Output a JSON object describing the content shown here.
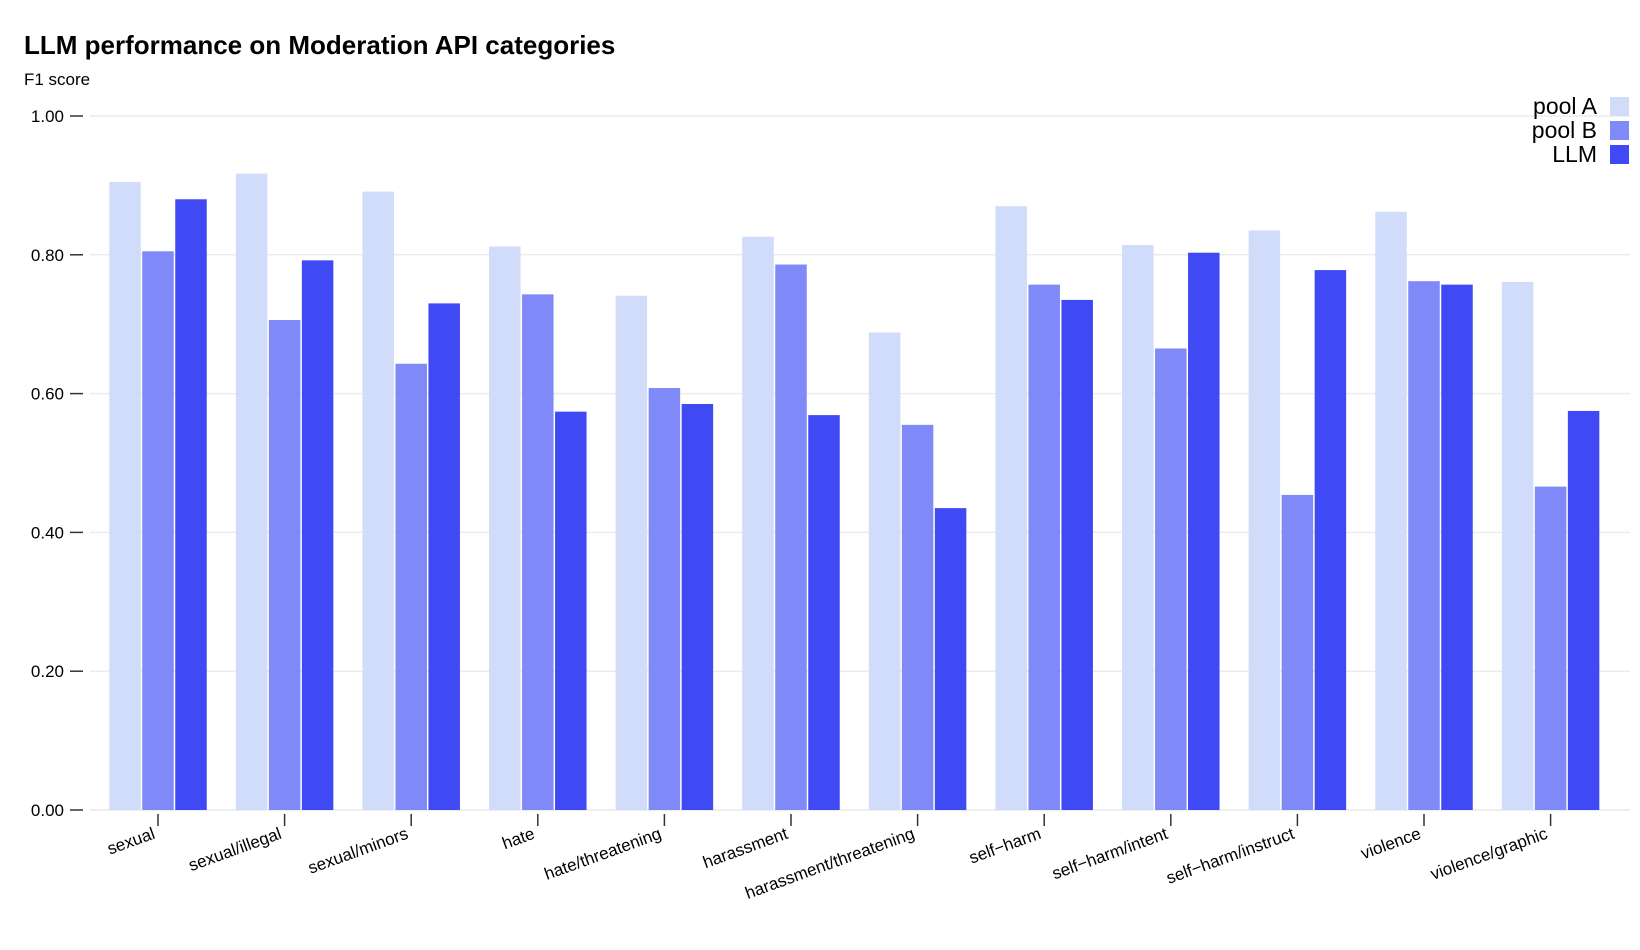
{
  "title": "LLM performance on Moderation API categories",
  "subtitle": "F1 score",
  "colors": {
    "pool_a": "#d1dcfb",
    "pool_b": "#7f89f8",
    "llm": "#3f4af5",
    "grid": "#ececec",
    "axis": "#333333"
  },
  "chart_data": {
    "type": "bar",
    "title": "LLM performance on Moderation API categories",
    "ylabel": "F1 score",
    "xlabel": "",
    "ylim": [
      0,
      1.0
    ],
    "yticks": [
      "0.00",
      "0.20",
      "0.40",
      "0.60",
      "0.80",
      "1.00"
    ],
    "grid": true,
    "legend_position": "top-right",
    "categories": [
      "sexual",
      "sexual/illegal",
      "sexual/minors",
      "hate",
      "hate/threatening",
      "harassment",
      "harassment/threatening",
      "self−harm",
      "self−harm/intent",
      "self−harm/instruct",
      "violence",
      "violence/graphic"
    ],
    "series": [
      {
        "name": "pool A",
        "values": [
          0.905,
          0.917,
          0.891,
          0.812,
          0.741,
          0.826,
          0.688,
          0.87,
          0.814,
          0.835,
          0.862,
          0.761
        ]
      },
      {
        "name": "pool B",
        "values": [
          0.805,
          0.706,
          0.643,
          0.743,
          0.608,
          0.786,
          0.555,
          0.757,
          0.665,
          0.454,
          0.762,
          0.466
        ]
      },
      {
        "name": "LLM",
        "values": [
          0.88,
          0.792,
          0.73,
          0.574,
          0.585,
          0.569,
          0.435,
          0.735,
          0.803,
          0.778,
          0.757,
          0.575
        ]
      }
    ]
  }
}
